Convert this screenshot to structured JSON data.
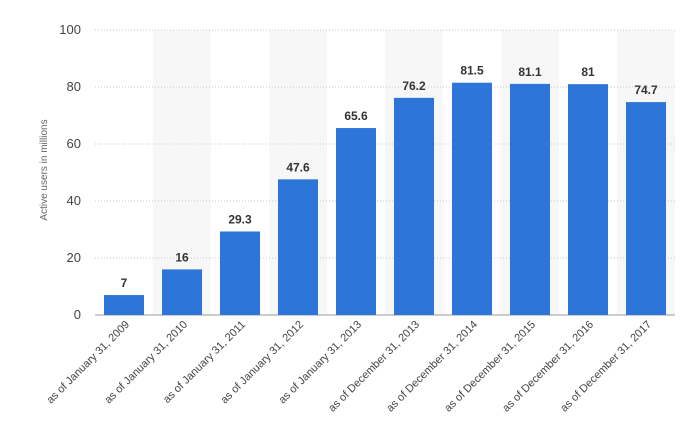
{
  "chart_data": {
    "type": "bar",
    "categories": [
      "as of January 31, 2009",
      "as of January 31, 2010",
      "as of January 31, 2011",
      "as of January 31, 2012",
      "as of January 31, 2013",
      "as of December 31, 2013",
      "as of December 31, 2014",
      "as of December 31, 2015",
      "as of December 31, 2016",
      "as of December 31, 2017"
    ],
    "values": [
      7,
      16,
      29.3,
      47.6,
      65.6,
      76.2,
      81.5,
      81.1,
      81,
      74.7
    ],
    "value_labels": [
      "7",
      "16",
      "29.3",
      "47.6",
      "65.6",
      "76.2",
      "81.5",
      "81.1",
      "81",
      "74.7"
    ],
    "title": "",
    "xlabel": "",
    "ylabel": "Active users in millions",
    "ylim": [
      0,
      100
    ],
    "yticks": [
      0,
      20,
      40,
      60,
      80,
      100
    ],
    "grid": true,
    "legend": "none",
    "bar_color": "#2e75d9",
    "band_color": "#f7f7f7"
  }
}
